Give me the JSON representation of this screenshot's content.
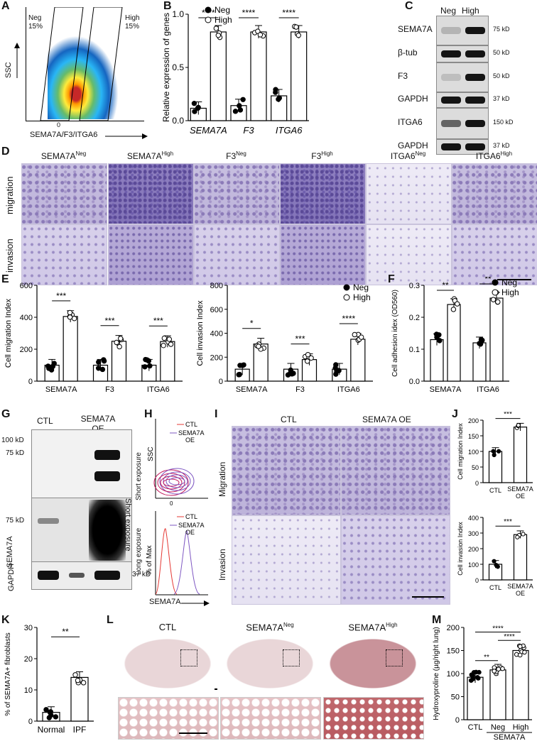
{
  "panels": {
    "A": "A",
    "B": "B",
    "C": "C",
    "D": "D",
    "E": "E",
    "F": "F",
    "G": "G",
    "H": "H",
    "I": "I",
    "J": "J",
    "K": "K",
    "L": "L",
    "M": "M"
  },
  "panelA": {
    "gate_neg": "Neg",
    "gate_neg_pct": "15%",
    "gate_high": "High",
    "gate_high_pct": "15%",
    "ylabel": "SSC",
    "xlabel": "SEMA7A/F3/ITGA6",
    "zero": "0"
  },
  "panelC": {
    "col_neg": "Neg",
    "col_high": "High",
    "rows": [
      "SEMA7A",
      "β-tub",
      "F3",
      "GAPDH",
      "ITGA6",
      "GAPDH"
    ],
    "markers": [
      "75 kD",
      "50 kD",
      "50 kD",
      "37 kD",
      "150 kD",
      "37 kD"
    ]
  },
  "panelD": {
    "columns": [
      "SEMA7A",
      "SEMA7A",
      "F3",
      "F3",
      "ITGA6",
      "ITGA6"
    ],
    "superscripts": [
      "Neg",
      "High",
      "Neg",
      "High",
      "Neg",
      "High"
    ],
    "rows": [
      "migration",
      "invasion"
    ]
  },
  "panelG": {
    "col_ctl": "CTL",
    "col_oe": "SEMA7A OE",
    "markers": [
      "100 kD",
      "75 kD",
      "75 kD",
      "37 kD"
    ],
    "ylabel": "SEMA7A",
    "loading": "GAPDH",
    "exp_short": "Short exposure",
    "exp_long": "Long exposure"
  },
  "panelH": {
    "ylabel_top": "SSC",
    "ylabel_bottom": "% of Max",
    "xlabel": "SEMA7A",
    "zero": "0",
    "legend_ctl": "CTL",
    "legend_oe_1": "SEMA7A",
    "legend_oe_2": "OE"
  },
  "panelI": {
    "col_ctl": "CTL",
    "col_oe": "SEMA7A OE",
    "rows": [
      "Migration",
      "Invasion"
    ]
  },
  "panelL": {
    "cols": [
      "CTL",
      "SEMA7A",
      "SEMA7A"
    ],
    "sups": [
      "",
      "Neg",
      "High"
    ]
  },
  "legend_neg": "Neg",
  "legend_high": "High",
  "chart_data": [
    {
      "id": "B",
      "type": "bar",
      "title": "",
      "ylabel": "Relative expression of genes",
      "ylim": [
        0,
        1.2
      ],
      "yticks": [
        "0.0",
        "0.5",
        "1.0"
      ],
      "categories": [
        "SEMA7A",
        "F3",
        "ITGA6"
      ],
      "series": [
        {
          "name": "Neg",
          "values": [
            0.14,
            0.17,
            0.28
          ]
        },
        {
          "name": "High",
          "values": [
            1.0,
            1.0,
            1.0
          ]
        }
      ],
      "significance": [
        "****",
        "****",
        "****"
      ]
    },
    {
      "id": "E1",
      "type": "bar",
      "ylabel": "Cell migration Index",
      "ylim": [
        0,
        600
      ],
      "yticks": [
        "0",
        "200",
        "400",
        "600"
      ],
      "categories": [
        "SEMA7A",
        "F3",
        "ITGA6"
      ],
      "series": [
        {
          "name": "Neg",
          "values": [
            100,
            100,
            100
          ]
        },
        {
          "name": "High",
          "values": [
            405,
            250,
            248
          ]
        }
      ],
      "significance": [
        "***",
        "***",
        "***"
      ]
    },
    {
      "id": "E2",
      "type": "bar",
      "ylabel": "Cell invasion Index",
      "ylim": [
        0,
        800
      ],
      "yticks": [
        "0",
        "200",
        "400",
        "600",
        "800"
      ],
      "categories": [
        "SEMA7A",
        "F3",
        "ITGA6"
      ],
      "series": [
        {
          "name": "Neg",
          "values": [
            100,
            100,
            100
          ]
        },
        {
          "name": "High",
          "values": [
            310,
            180,
            350
          ]
        }
      ],
      "significance": [
        "*",
        "***",
        "****"
      ]
    },
    {
      "id": "F",
      "type": "bar",
      "ylabel": "Cell adhesion idex (OD560)",
      "ylim": [
        0,
        0.3
      ],
      "yticks": [
        "0.0",
        "0.1",
        "0.2",
        "0.3"
      ],
      "categories": [
        "SEMA7A",
        "ITGA6"
      ],
      "series": [
        {
          "name": "Neg",
          "values": [
            0.13,
            0.12
          ]
        },
        {
          "name": "High",
          "values": [
            0.24,
            0.26
          ]
        }
      ],
      "significance": [
        "**",
        "**"
      ]
    },
    {
      "id": "J1",
      "type": "bar",
      "ylabel": "Cell migration Index",
      "ylim": [
        0,
        200
      ],
      "yticks": [
        "0",
        "50",
        "100",
        "150",
        "200"
      ],
      "categories": [
        "CTL",
        "SEMA7A OE"
      ],
      "values": [
        100,
        178
      ],
      "significance": [
        "***"
      ]
    },
    {
      "id": "J2",
      "type": "bar",
      "ylabel": "Cell invasion Index",
      "ylim": [
        0,
        400
      ],
      "yticks": [
        "0",
        "100",
        "200",
        "300",
        "400"
      ],
      "categories": [
        "CTL",
        "SEMA7A OE"
      ],
      "values": [
        100,
        290
      ],
      "significance": [
        "***"
      ]
    },
    {
      "id": "K",
      "type": "bar",
      "ylabel": "% of SEMA7A+ fibroblasts",
      "ylim": [
        0,
        30
      ],
      "yticks": [
        "0",
        "10",
        "20",
        "30"
      ],
      "categories": [
        "Normal",
        "IPF"
      ],
      "values": [
        2.8,
        14
      ],
      "significance": [
        "**"
      ]
    },
    {
      "id": "M",
      "type": "bar",
      "ylabel": "Hydroxyproline (µg/right lung)",
      "ylim": [
        0,
        200
      ],
      "yticks": [
        "0",
        "50",
        "100",
        "150",
        "200"
      ],
      "categories": [
        "CTL",
        "Neg",
        "High"
      ],
      "group_label": "SEMA7A",
      "values": [
        92,
        108,
        150
      ],
      "significance": [
        "**",
        "****",
        "****"
      ]
    }
  ]
}
